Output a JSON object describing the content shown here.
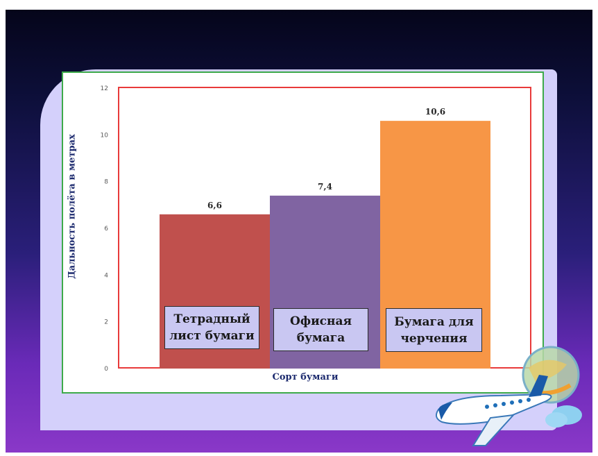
{
  "colors": {
    "bar1": "#c0504d",
    "bar2": "#8064a2",
    "bar3": "#f79646",
    "plot_border": "#e83a3a",
    "frame_border": "#3daa4a",
    "panel_bg": "#d4d0fb"
  },
  "chart_data": {
    "type": "bar",
    "categories": [
      "Тетрадный лист бумаги",
      "Офисная бумага",
      "Бумага для черчения"
    ],
    "category_lines": [
      [
        "Тетрадный",
        "лист бумаги"
      ],
      [
        "Офисная",
        "бумага"
      ],
      [
        "Бумага для",
        "черчения"
      ]
    ],
    "values": [
      6.6,
      7.4,
      10.6
    ],
    "value_labels": [
      "6,6",
      "7,4",
      "10,6"
    ],
    "xlabel": "Сорт бумаги",
    "ylabel": "Дальность полёта в метрах",
    "ylim": [
      0,
      12
    ],
    "yticks": [
      0,
      2,
      4,
      6,
      8,
      10,
      12
    ],
    "grid": false,
    "legend": "none"
  },
  "decorations": {
    "icon": "airplane-icon"
  }
}
